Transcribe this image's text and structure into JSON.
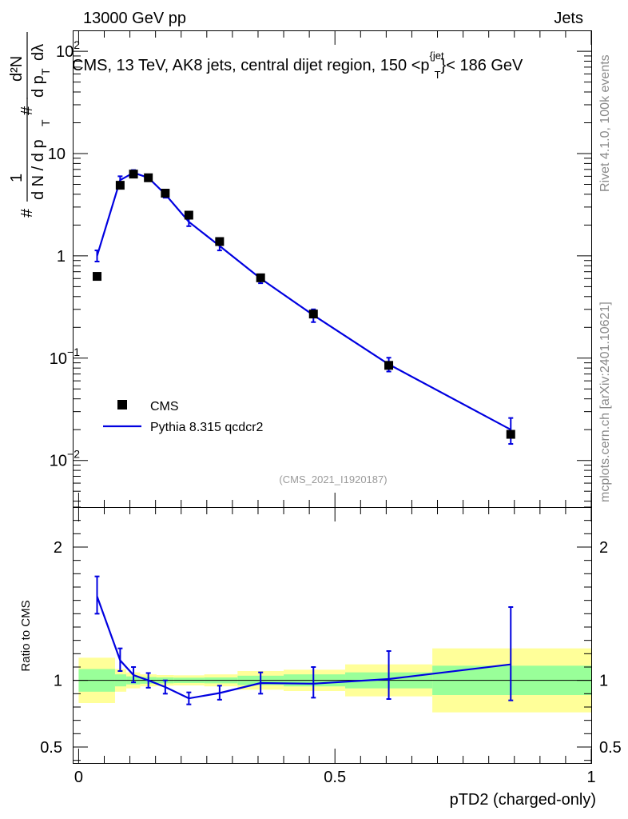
{
  "header": {
    "left": "13000 GeV pp",
    "right": "Jets"
  },
  "side_labels": {
    "rivet": "Rivet 4.1.0,  100k events",
    "mcplots": "mcplots.cern.ch [arXiv:2401.10621]"
  },
  "analysis_id": "(CMS_2021_I1920187)",
  "colors": {
    "mc": "#0000e0",
    "data": "#000000",
    "band_inner": "#99ff99",
    "band_outer": "#ffff99"
  },
  "chart_data": [
    {
      "type": "scatter",
      "title": "CMS, 13 TeV, AK8 jets, central dijet region, 150 <p",
      "title_sup": "{jet",
      "title_sub": "T",
      "title_tail": "}< 186 GeV",
      "ylabel": "# 1/(dN/dp_T #) d²N/(dp_T dλ)",
      "ylabel_parts": {
        "hash": "#",
        "one": "1",
        "dN": "d N / d p",
        "T": "T",
        "d2N": "d²N",
        "dpT": "d p",
        "dl": "dλ"
      },
      "yscale": "log",
      "ylim": [
        0.0035,
        160
      ],
      "xlim": [
        -0.01,
        1.0
      ],
      "yticks": [
        {
          "value": 0.01,
          "label": "10",
          "exp": "−2"
        },
        {
          "value": 0.1,
          "label": "10",
          "exp": "−1"
        },
        {
          "value": 1,
          "label": "1",
          "exp": ""
        },
        {
          "value": 10,
          "label": "10",
          "exp": ""
        },
        {
          "value": 100,
          "label": "10",
          "exp": "2"
        }
      ],
      "legend": [
        {
          "name": "CMS",
          "marker": "square"
        },
        {
          "name": "Pythia 8.315 qcdcr2",
          "marker": "line"
        }
      ],
      "series": [
        {
          "name": "CMS",
          "points": [
            {
              "x": 0.036,
              "y": 0.63
            },
            {
              "x": 0.081,
              "y": 4.9
            },
            {
              "x": 0.107,
              "y": 6.3
            },
            {
              "x": 0.136,
              "y": 5.8
            },
            {
              "x": 0.169,
              "y": 4.1
            },
            {
              "x": 0.215,
              "y": 2.5
            },
            {
              "x": 0.275,
              "y": 1.38
            },
            {
              "x": 0.355,
              "y": 0.61
            },
            {
              "x": 0.458,
              "y": 0.27
            },
            {
              "x": 0.605,
              "y": 0.085
            },
            {
              "x": 0.843,
              "y": 0.018
            }
          ]
        },
        {
          "name": "Pythia 8.315 qcdcr2",
          "points": [
            {
              "x": 0.036,
              "y": 1.0,
              "lo": 0.88,
              "hi": 1.13
            },
            {
              "x": 0.081,
              "y": 5.5,
              "lo": 5.0,
              "hi": 6.0
            },
            {
              "x": 0.107,
              "y": 6.5,
              "lo": 6.1,
              "hi": 6.9
            },
            {
              "x": 0.136,
              "y": 5.8,
              "lo": 5.4,
              "hi": 6.2
            },
            {
              "x": 0.169,
              "y": 4.0,
              "lo": 3.7,
              "hi": 4.3
            },
            {
              "x": 0.215,
              "y": 2.15,
              "lo": 1.95,
              "hi": 2.35
            },
            {
              "x": 0.275,
              "y": 1.25,
              "lo": 1.13,
              "hi": 1.38
            },
            {
              "x": 0.355,
              "y": 0.6,
              "lo": 0.54,
              "hi": 0.66
            },
            {
              "x": 0.458,
              "y": 0.263,
              "lo": 0.225,
              "hi": 0.3
            },
            {
              "x": 0.605,
              "y": 0.087,
              "lo": 0.074,
              "hi": 0.101
            },
            {
              "x": 0.843,
              "y": 0.02,
              "lo": 0.0145,
              "hi": 0.026
            }
          ]
        }
      ]
    },
    {
      "type": "line",
      "ylabel": "Ratio to CMS",
      "xlabel": "pTD2 (charged-only)",
      "ylim": [
        0.38,
        2.3
      ],
      "xlim": [
        -0.01,
        1.0
      ],
      "yticks": [
        {
          "value": 0.5,
          "label": "0.5"
        },
        {
          "value": 1,
          "label": "1"
        },
        {
          "value": 2,
          "label": "2"
        }
      ],
      "xticks": [
        {
          "value": 0,
          "label": "0"
        },
        {
          "value": 0.5,
          "label": "0.5"
        },
        {
          "value": 1,
          "label": "1"
        }
      ],
      "bands": [
        {
          "x0": 0.0,
          "x1": 0.071,
          "inner": [
            0.915,
            1.085
          ],
          "outer": [
            0.83,
            1.17
          ]
        },
        {
          "x0": 0.071,
          "x1": 0.093,
          "inner": [
            0.955,
            1.045
          ],
          "outer": [
            0.915,
            1.085
          ]
        },
        {
          "x0": 0.093,
          "x1": 0.12,
          "inner": [
            0.97,
            1.03
          ],
          "outer": [
            0.94,
            1.06
          ]
        },
        {
          "x0": 0.12,
          "x1": 0.152,
          "inner": [
            0.975,
            1.025
          ],
          "outer": [
            0.955,
            1.045
          ]
        },
        {
          "x0": 0.152,
          "x1": 0.186,
          "inner": [
            0.978,
            1.022
          ],
          "outer": [
            0.96,
            1.04
          ]
        },
        {
          "x0": 0.186,
          "x1": 0.245,
          "inner": [
            0.98,
            1.02
          ],
          "outer": [
            0.962,
            1.038
          ]
        },
        {
          "x0": 0.245,
          "x1": 0.31,
          "inner": [
            0.978,
            1.022
          ],
          "outer": [
            0.955,
            1.045
          ]
        },
        {
          "x0": 0.31,
          "x1": 0.4,
          "inner": [
            0.965,
            1.035
          ],
          "outer": [
            0.93,
            1.07
          ]
        },
        {
          "x0": 0.4,
          "x1": 0.52,
          "inner": [
            0.955,
            1.045
          ],
          "outer": [
            0.92,
            1.08
          ]
        },
        {
          "x0": 0.52,
          "x1": 0.69,
          "inner": [
            0.94,
            1.06
          ],
          "outer": [
            0.88,
            1.12
          ]
        },
        {
          "x0": 0.69,
          "x1": 1.0,
          "inner": [
            0.89,
            1.11
          ],
          "outer": [
            0.76,
            1.24
          ]
        }
      ],
      "series": [
        {
          "name": "Pythia 8.315 qcdcr2 / CMS",
          "points": [
            {
              "x": 0.036,
              "y": 1.63,
              "lo": 1.5,
              "hi": 1.78
            },
            {
              "x": 0.081,
              "y": 1.15,
              "lo": 1.07,
              "hi": 1.24
            },
            {
              "x": 0.107,
              "y": 1.04,
              "lo": 0.985,
              "hi": 1.1
            },
            {
              "x": 0.136,
              "y": 1.0,
              "lo": 0.945,
              "hi": 1.055
            },
            {
              "x": 0.169,
              "y": 0.95,
              "lo": 0.9,
              "hi": 1.0
            },
            {
              "x": 0.215,
              "y": 0.865,
              "lo": 0.82,
              "hi": 0.91
            },
            {
              "x": 0.275,
              "y": 0.905,
              "lo": 0.855,
              "hi": 0.96
            },
            {
              "x": 0.355,
              "y": 0.98,
              "lo": 0.9,
              "hi": 1.06
            },
            {
              "x": 0.458,
              "y": 0.975,
              "lo": 0.87,
              "hi": 1.1
            },
            {
              "x": 0.605,
              "y": 1.01,
              "lo": 0.86,
              "hi": 1.22
            },
            {
              "x": 0.843,
              "y": 1.12,
              "lo": 0.85,
              "hi": 1.55
            }
          ]
        }
      ]
    }
  ]
}
